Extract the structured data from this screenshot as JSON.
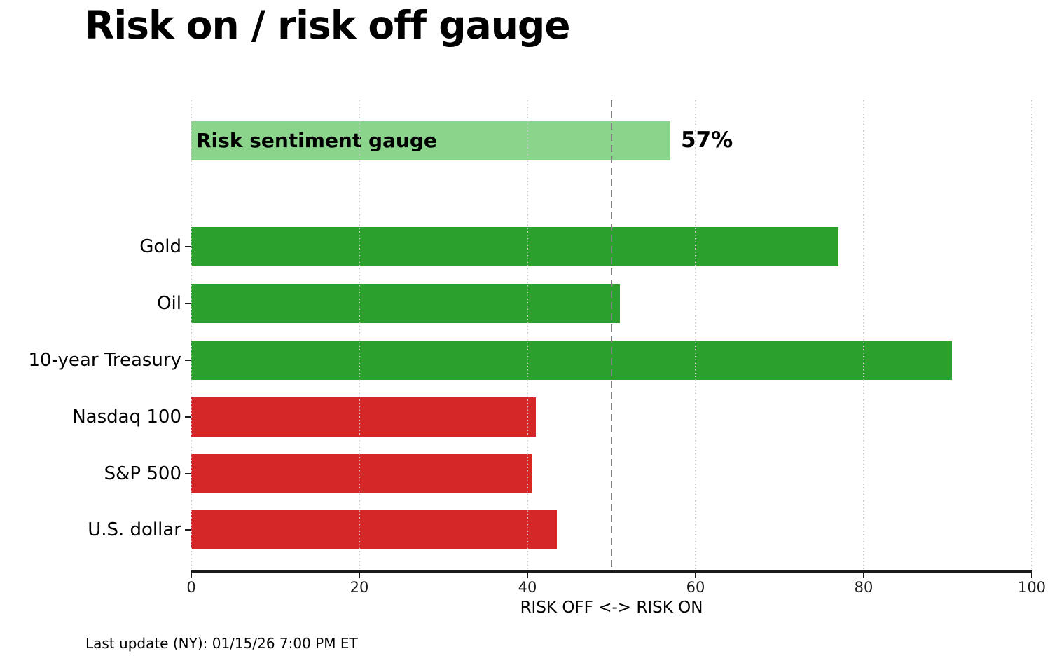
{
  "title": "Risk on / risk off gauge",
  "footer": "Last update (NY): 01/15/26 7:00 PM ET",
  "chart_data": {
    "type": "bar",
    "orientation": "horizontal",
    "title": "Risk on / risk off gauge",
    "xlabel": "RISK OFF <-> RISK ON",
    "xlim": [
      0,
      100
    ],
    "xticks": [
      0,
      20,
      40,
      60,
      80,
      100
    ],
    "grid": "vertical-dotted",
    "reference_line": {
      "x": 50,
      "style": "dashed",
      "color": "#7f7f7f"
    },
    "gauge": {
      "label": "Risk sentiment gauge",
      "value": 57,
      "display_value": "57%",
      "color": "#8bd48b"
    },
    "categories": [
      "Gold",
      "Oil",
      "10-year Treasury",
      "Nasdaq 100",
      "S&P 500",
      "U.S. dollar"
    ],
    "values": [
      77,
      51,
      90.5,
      41,
      40.5,
      43.5
    ],
    "bar_colors": [
      "#2ca02c",
      "#2ca02c",
      "#2ca02c",
      "#d62728",
      "#d62728",
      "#d62728"
    ],
    "colors": {
      "risk_on": "#2ca02c",
      "risk_off": "#d62728",
      "gauge": "#8bd48b",
      "gridline": "#cccccc",
      "axis": "#1a1a1a"
    }
  }
}
